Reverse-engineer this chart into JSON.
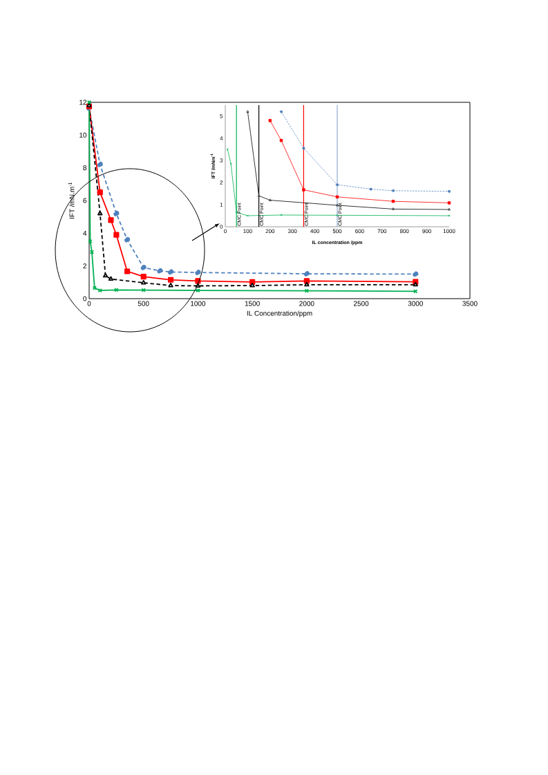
{
  "chart_data": [
    {
      "type": "line",
      "xlabel": "IL Concentration/ppm",
      "ylabel": "IFT /mN.m$^{-1}$",
      "xlim": [
        0,
        3500
      ],
      "xticks": [
        0,
        500,
        1000,
        1500,
        2000,
        2500,
        3000,
        3500
      ],
      "ylim": [
        0,
        12
      ],
      "yticks": [
        0,
        2,
        4,
        6,
        8,
        10,
        12
      ],
      "series": [
        {
          "color": "#4f81bd",
          "line_style": "dashed",
          "marker": "circle",
          "x": [
            0,
            100,
            250,
            350,
            500,
            650,
            750,
            1000,
            2000,
            3000
          ],
          "values": [
            11.65,
            8.2,
            5.2,
            3.6,
            1.9,
            1.7,
            1.63,
            1.6,
            1.52,
            1.5
          ]
        },
        {
          "color": "#ff0000",
          "line_style": "solid",
          "marker": "square",
          "x": [
            0,
            100,
            200,
            250,
            350,
            500,
            750,
            1000,
            1500,
            2000,
            3000
          ],
          "values": [
            11.75,
            6.5,
            4.8,
            3.9,
            1.67,
            1.35,
            1.15,
            1.08,
            1.02,
            1.08,
            1.03
          ]
        },
        {
          "color": "#000000",
          "line_style": "dashed",
          "marker": "triangle",
          "x": [
            0,
            100,
            150,
            200,
            500,
            750,
            1000,
            1500,
            2000,
            3000
          ],
          "values": [
            11.8,
            5.2,
            1.4,
            1.2,
            0.97,
            0.8,
            0.78,
            0.8,
            0.85,
            0.85
          ]
        },
        {
          "color": "#00b050",
          "line_style": "solid",
          "marker": "cross",
          "x": [
            0,
            10,
            25,
            50,
            100,
            250,
            500,
            1000,
            2000,
            3000
          ],
          "values": [
            12.0,
            3.5,
            2.85,
            0.65,
            0.5,
            0.53,
            0.52,
            0.5,
            0.48,
            0.45
          ]
        }
      ]
    },
    {
      "type": "line",
      "xlabel": "IL concentration /ppm",
      "ylabel": "IFT /mNm$^{-1}$",
      "xlim": [
        0,
        1000
      ],
      "xticks": [
        0,
        100,
        200,
        300,
        400,
        500,
        600,
        700,
        800,
        900,
        1000
      ],
      "ylim": [
        0,
        5.5
      ],
      "yticks": [
        0,
        1,
        2,
        3,
        4,
        5
      ],
      "series": [
        {
          "color": "#4f81bd",
          "line_style": "dashed",
          "marker": "circle",
          "x": [
            250,
            350,
            500,
            650,
            750,
            1000
          ],
          "values": [
            5.2,
            3.55,
            1.9,
            1.7,
            1.63,
            1.6
          ]
        },
        {
          "color": "#ff0000",
          "line_style": "solid",
          "marker": "square",
          "x": [
            200,
            250,
            350,
            500,
            750,
            1000
          ],
          "values": [
            4.8,
            3.9,
            1.67,
            1.35,
            1.15,
            1.08
          ]
        },
        {
          "color": "#000000",
          "line_style": "solid",
          "marker": "triangle",
          "x": [
            100,
            150,
            200,
            500,
            750,
            1000
          ],
          "values": [
            5.2,
            1.4,
            1.2,
            0.97,
            0.8,
            0.78
          ]
        },
        {
          "color": "#00b050",
          "line_style": "solid",
          "marker": "cross",
          "x": [
            10,
            25,
            50,
            100,
            250,
            500,
            1000
          ],
          "values": [
            3.5,
            2.85,
            0.65,
            0.5,
            0.53,
            0.52,
            0.5
          ]
        }
      ],
      "ref_lines": [
        {
          "axis": "x",
          "value": 50,
          "label": "CMC Point",
          "color": "#00b050"
        },
        {
          "axis": "x",
          "value": 150,
          "label": "CMC Point",
          "color": "#000000"
        },
        {
          "axis": "x",
          "value": 350,
          "label": "CMC Point",
          "color": "#ff0000"
        },
        {
          "axis": "x",
          "value": 500,
          "label": "CMC Point",
          "color": "#8eaad6"
        }
      ]
    }
  ]
}
